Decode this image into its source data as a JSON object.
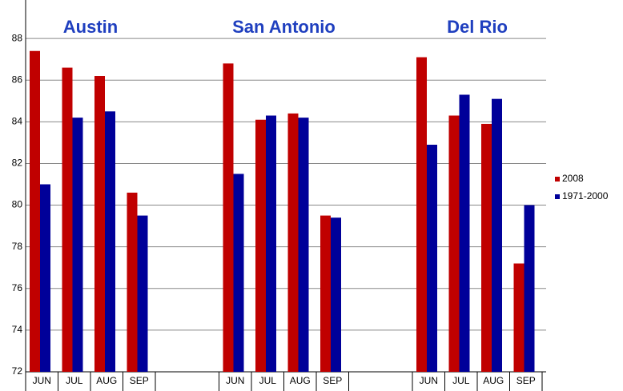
{
  "chart_data": {
    "type": "bar",
    "groups": [
      "Austin",
      "San Antonio",
      "Del Rio"
    ],
    "categories": [
      "JUN",
      "JUL",
      "AUG",
      "SEP",
      "JUN",
      "JUL",
      "AUG",
      "SEP",
      "JUN",
      "JUL",
      "AUG",
      "SEP"
    ],
    "series": [
      {
        "name": "2008",
        "color": "#c00000",
        "values": [
          87.4,
          86.6,
          86.2,
          80.6,
          86.8,
          84.1,
          84.4,
          79.5,
          87.1,
          84.3,
          83.9,
          77.2
        ]
      },
      {
        "name": "1971-2000",
        "color": "#000099",
        "values": [
          81.0,
          84.2,
          84.5,
          79.5,
          81.5,
          84.3,
          84.2,
          79.4,
          82.9,
          85.3,
          85.1,
          80.0
        ]
      }
    ],
    "ylim": [
      72,
      90
    ],
    "yticks": [
      72,
      74,
      76,
      78,
      80,
      82,
      84,
      86,
      88,
      90
    ],
    "grid": true,
    "legend": "right"
  }
}
